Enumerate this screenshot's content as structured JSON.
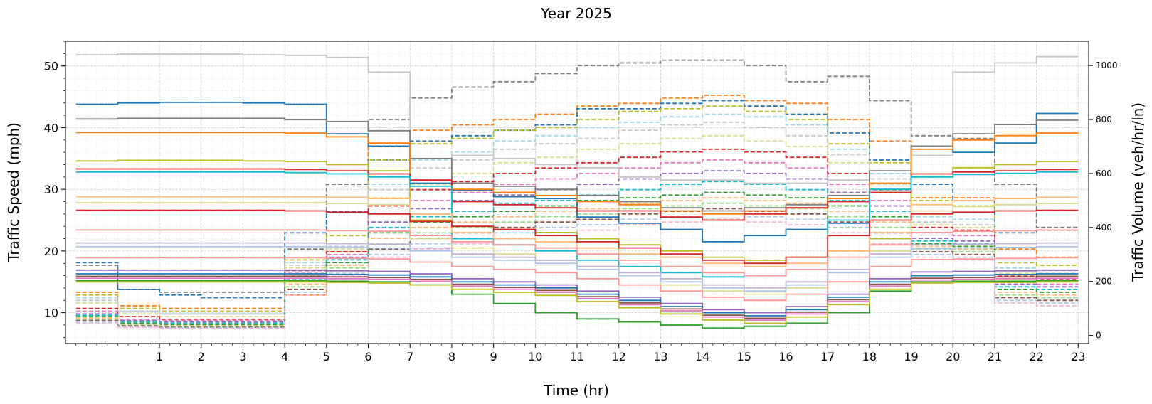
{
  "chart_data": {
    "type": "line",
    "title": "Year 2025",
    "xlabel": "Time (hr)",
    "ylabel": "Traffic Speed (mph)",
    "ylabel_right": "Traffic Volume (veh/hr/ln)",
    "xlim": [
      -1.25,
      23.25
    ],
    "ylim": [
      5,
      54
    ],
    "ylim_right": [
      -30,
      1090
    ],
    "x_ticks": [
      "1",
      "2",
      "3",
      "4",
      "5",
      "6",
      "7",
      "8",
      "9",
      "10",
      "11",
      "12",
      "13",
      "14",
      "15",
      "16",
      "17",
      "18",
      "19",
      "20",
      "21",
      "22",
      "23"
    ],
    "y_ticks": [
      "10",
      "20",
      "30",
      "40",
      "50"
    ],
    "y_ticks_right": [
      "0",
      "200",
      "400",
      "600",
      "800",
      "1000"
    ],
    "grid": true,
    "minor_grid": true,
    "legend": "none",
    "speed_series": [
      {
        "color": "#c7c7c7",
        "values": [
          51.8,
          51.9,
          51.9,
          51.9,
          51.8,
          51.7,
          51.4,
          49.0,
          26.0,
          35.5,
          35.0,
          34.0,
          33.5,
          32.0,
          31.5,
          31.5,
          31.0,
          31.0,
          31.5,
          31.0,
          35.5,
          49.0,
          50.5,
          51.5
        ]
      },
      {
        "color": "#1f77b4",
        "values": [
          43.8,
          44.0,
          44.1,
          44.1,
          44.0,
          43.8,
          39.0,
          37.0,
          31.0,
          29.8,
          28.8,
          28.5,
          25.5,
          24.5,
          23.5,
          21.5,
          22.5,
          23.5,
          24.5,
          30.0,
          37.0,
          36.0,
          37.5,
          42.3
        ]
      },
      {
        "color": "#7f7f7f",
        "values": [
          41.4,
          41.5,
          41.5,
          41.5,
          41.5,
          41.3,
          41.0,
          39.5,
          35.0,
          31.0,
          30.5,
          30.0,
          29.0,
          28.0,
          27.0,
          26.5,
          27.0,
          27.5,
          29.0,
          33.0,
          37.0,
          39.0,
          40.5,
          41.2
        ]
      },
      {
        "color": "#ff7f0e",
        "values": [
          39.2,
          39.2,
          39.2,
          39.2,
          39.2,
          39.1,
          38.5,
          37.5,
          31.5,
          30.0,
          29.5,
          29.0,
          28.0,
          27.5,
          26.5,
          26.0,
          26.5,
          27.0,
          28.5,
          31.0,
          36.5,
          38.0,
          38.7,
          39.1
        ]
      },
      {
        "color": "#bcbd22",
        "values": [
          34.6,
          34.7,
          34.7,
          34.7,
          34.6,
          34.5,
          34.0,
          33.0,
          25.0,
          24.0,
          23.5,
          23.0,
          22.0,
          21.0,
          20.0,
          19.0,
          18.5,
          19.0,
          20.0,
          22.0,
          32.0,
          33.5,
          34.0,
          34.5
        ]
      },
      {
        "color": "#d62728",
        "values": [
          33.3,
          33.3,
          33.3,
          33.3,
          33.3,
          33.2,
          33.0,
          32.5,
          31.5,
          28.0,
          27.5,
          27.0,
          26.5,
          26.5,
          25.5,
          25.0,
          26.0,
          27.0,
          28.0,
          29.5,
          32.5,
          32.8,
          33.0,
          33.2
        ]
      },
      {
        "color": "#17becf",
        "values": [
          32.8,
          32.8,
          32.8,
          32.8,
          32.8,
          32.7,
          32.5,
          32.0,
          30.5,
          22.0,
          21.0,
          20.0,
          18.5,
          17.5,
          16.5,
          15.8,
          16.0,
          17.0,
          25.0,
          30.0,
          32.0,
          32.4,
          32.6,
          32.8
        ]
      },
      {
        "color": "#ffbb78",
        "values": [
          28.8,
          28.8,
          28.8,
          28.8,
          28.8,
          28.8,
          28.7,
          28.5,
          26.0,
          23.0,
          22.0,
          21.5,
          20.5,
          19.5,
          19.0,
          18.0,
          17.5,
          18.0,
          20.0,
          23.0,
          27.5,
          28.2,
          28.5,
          28.7
        ]
      },
      {
        "color": "#dbdb8d",
        "values": [
          27.8,
          27.8,
          27.8,
          27.8,
          27.8,
          27.8,
          27.7,
          27.5,
          22.0,
          20.5,
          19.5,
          18.5,
          17.5,
          16.0,
          14.5,
          13.5,
          13.0,
          14.0,
          16.5,
          20.0,
          26.5,
          27.2,
          27.5,
          27.7
        ]
      },
      {
        "color": "#d62728",
        "values": [
          26.6,
          26.6,
          26.6,
          26.6,
          26.6,
          26.5,
          26.3,
          26.0,
          24.8,
          24.0,
          23.5,
          22.5,
          21.5,
          20.5,
          19.5,
          18.5,
          18.0,
          19.0,
          22.5,
          25.0,
          26.0,
          26.3,
          26.5,
          26.6
        ]
      },
      {
        "color": "#ff9896",
        "values": [
          23.4,
          23.4,
          23.4,
          23.4,
          23.4,
          23.4,
          23.3,
          23.2,
          22.5,
          21.5,
          21.0,
          20.5,
          19.5,
          18.5,
          17.5,
          16.5,
          16.0,
          17.0,
          19.0,
          21.0,
          23.0,
          23.2,
          23.3,
          23.4
        ]
      },
      {
        "color": "#c5b0d5",
        "values": [
          21.3,
          21.3,
          21.3,
          21.3,
          21.3,
          21.3,
          21.2,
          21.1,
          20.5,
          19.5,
          19.0,
          18.5,
          17.5,
          16.5,
          15.5,
          14.5,
          14.0,
          15.0,
          17.0,
          19.5,
          21.0,
          21.1,
          21.2,
          21.3
        ]
      },
      {
        "color": "#aec7e8",
        "values": [
          20.7,
          20.7,
          20.7,
          20.7,
          20.7,
          20.7,
          20.6,
          20.5,
          20.0,
          19.0,
          18.5,
          18.0,
          17.0,
          16.0,
          15.0,
          14.0,
          13.5,
          14.5,
          16.5,
          19.0,
          20.4,
          20.5,
          20.6,
          20.7
        ]
      },
      {
        "color": "#ff9896",
        "values": [
          18.9,
          18.9,
          18.9,
          18.9,
          18.9,
          18.9,
          18.8,
          18.7,
          18.2,
          17.5,
          17.0,
          16.5,
          15.5,
          14.5,
          13.5,
          12.5,
          12.0,
          13.0,
          15.0,
          17.5,
          18.6,
          18.7,
          18.8,
          18.9
        ]
      },
      {
        "color": "#9467bd",
        "values": [
          16.9,
          16.9,
          16.9,
          16.9,
          16.9,
          16.9,
          16.8,
          16.7,
          16.3,
          15.5,
          15.0,
          14.5,
          13.5,
          12.5,
          11.5,
          10.5,
          10.0,
          11.0,
          13.0,
          15.5,
          16.6,
          16.7,
          16.8,
          16.9
        ]
      },
      {
        "color": "#1f77b4",
        "values": [
          16.3,
          16.3,
          16.3,
          16.3,
          16.3,
          16.3,
          16.2,
          16.1,
          15.8,
          15.0,
          14.5,
          14.0,
          13.0,
          12.0,
          11.0,
          10.0,
          9.5,
          10.5,
          12.5,
          15.0,
          16.0,
          16.1,
          16.2,
          16.3
        ]
      },
      {
        "color": "#8c564b",
        "values": [
          15.9,
          15.9,
          15.9,
          15.9,
          15.9,
          15.9,
          15.8,
          15.7,
          15.4,
          14.6,
          14.1,
          13.6,
          12.6,
          11.6,
          10.6,
          9.6,
          9.1,
          10.1,
          12.1,
          14.6,
          15.6,
          15.7,
          15.8,
          15.9
        ]
      },
      {
        "color": "#e377c2",
        "values": [
          15.6,
          15.6,
          15.6,
          15.6,
          15.6,
          15.6,
          15.5,
          15.4,
          15.1,
          14.3,
          13.8,
          13.3,
          12.3,
          11.3,
          10.3,
          9.3,
          8.8,
          9.8,
          11.8,
          14.3,
          15.3,
          15.4,
          15.5,
          15.6
        ]
      },
      {
        "color": "#2ca02c",
        "values": [
          15.2,
          15.2,
          15.2,
          15.2,
          15.2,
          15.2,
          15.1,
          15.0,
          14.5,
          13.0,
          11.5,
          10.0,
          9.0,
          8.5,
          8.0,
          7.5,
          7.8,
          8.3,
          10.0,
          13.5,
          15.0,
          15.1,
          15.1,
          15.2
        ]
      },
      {
        "color": "#bcbd22",
        "values": [
          15.0,
          15.0,
          15.0,
          15.0,
          15.0,
          15.0,
          14.9,
          14.8,
          14.5,
          13.8,
          13.3,
          12.8,
          11.8,
          10.8,
          9.8,
          8.8,
          8.3,
          9.3,
          11.3,
          13.8,
          14.8,
          14.9,
          14.9,
          15.0
        ]
      }
    ],
    "volume_series": [
      {
        "color": "#7f7f7f",
        "values": [
          260,
          170,
          160,
          160,
          160,
          320,
          560,
          800,
          880,
          920,
          940,
          970,
          1000,
          1010,
          1020,
          1020,
          1000,
          940,
          960,
          870,
          740,
          730,
          560,
          400
        ]
      },
      {
        "color": "#ff7f0e",
        "values": [
          160,
          110,
          100,
          100,
          100,
          150,
          310,
          700,
          760,
          780,
          800,
          820,
          850,
          860,
          880,
          890,
          870,
          860,
          800,
          720,
          510,
          510,
          320,
          290
        ]
      },
      {
        "color": "#1f77b4",
        "values": [
          270,
          170,
          150,
          140,
          140,
          380,
          460,
          650,
          720,
          740,
          760,
          780,
          840,
          840,
          860,
          870,
          850,
          820,
          750,
          650,
          560,
          500,
          380,
          390
        ]
      },
      {
        "color": "#bcbd22",
        "values": [
          150,
          100,
          90,
          90,
          90,
          280,
          370,
          650,
          710,
          730,
          760,
          770,
          800,
          830,
          840,
          850,
          830,
          800,
          710,
          640,
          500,
          480,
          270,
          260
        ]
      },
      {
        "color": "#9edae5",
        "values": [
          140,
          90,
          80,
          80,
          80,
          270,
          340,
          560,
          650,
          680,
          720,
          740,
          770,
          790,
          810,
          820,
          810,
          780,
          690,
          600,
          440,
          430,
          250,
          240
        ]
      },
      {
        "color": "#c7c7c7",
        "values": [
          130,
          90,
          80,
          80,
          80,
          260,
          330,
          540,
          620,
          650,
          690,
          710,
          730,
          760,
          780,
          790,
          770,
          740,
          670,
          580,
          420,
          410,
          240,
          230
        ]
      },
      {
        "color": "#dbdb8d",
        "values": [
          120,
          80,
          70,
          70,
          70,
          250,
          320,
          510,
          560,
          600,
          640,
          660,
          690,
          710,
          730,
          740,
          720,
          700,
          640,
          560,
          410,
          400,
          230,
          220
        ]
      },
      {
        "color": "#d62728",
        "values": [
          100,
          70,
          60,
          60,
          60,
          240,
          310,
          480,
          540,
          570,
          600,
          620,
          640,
          660,
          680,
          690,
          680,
          660,
          600,
          540,
          400,
          390,
          220,
          210
        ]
      },
      {
        "color": "#e377c2",
        "values": [
          90,
          60,
          55,
          55,
          55,
          230,
          300,
          450,
          500,
          530,
          560,
          580,
          600,
          620,
          640,
          650,
          640,
          620,
          560,
          500,
          380,
          370,
          200,
          190
        ]
      },
      {
        "color": "#9467bd",
        "values": [
          80,
          55,
          50,
          50,
          50,
          220,
          290,
          420,
          470,
          500,
          520,
          540,
          560,
          580,
          600,
          610,
          600,
          580,
          530,
          480,
          360,
          350,
          190,
          180
        ]
      },
      {
        "color": "#17becf",
        "values": [
          75,
          50,
          45,
          45,
          45,
          210,
          280,
          400,
          440,
          460,
          490,
          500,
          520,
          540,
          560,
          570,
          560,
          540,
          500,
          460,
          350,
          340,
          180,
          170
        ]
      },
      {
        "color": "#2ca02c",
        "values": [
          70,
          45,
          40,
          40,
          40,
          200,
          270,
          380,
          420,
          440,
          460,
          480,
          500,
          510,
          520,
          530,
          520,
          510,
          480,
          440,
          340,
          330,
          170,
          160
        ]
      },
      {
        "color": "#ffbb78",
        "values": [
          65,
          40,
          35,
          35,
          35,
          190,
          260,
          360,
          400,
          420,
          440,
          460,
          470,
          490,
          500,
          510,
          500,
          490,
          460,
          420,
          330,
          320,
          160,
          150
        ]
      },
      {
        "color": "#98df8a",
        "values": [
          60,
          38,
          32,
          32,
          32,
          180,
          250,
          340,
          380,
          400,
          420,
          440,
          450,
          470,
          480,
          490,
          480,
          470,
          440,
          400,
          320,
          310,
          150,
          140
        ]
      },
      {
        "color": "#8c564b",
        "values": [
          55,
          35,
          30,
          30,
          30,
          170,
          240,
          320,
          360,
          380,
          400,
          420,
          430,
          450,
          460,
          470,
          460,
          450,
          420,
          380,
          310,
          300,
          140,
          130
        ]
      },
      {
        "color": "#aec7e8",
        "values": [
          50,
          32,
          28,
          28,
          28,
          160,
          230,
          300,
          340,
          360,
          380,
          400,
          410,
          430,
          440,
          450,
          440,
          430,
          400,
          360,
          300,
          290,
          130,
          120
        ]
      },
      {
        "color": "#f7b6d2",
        "values": [
          45,
          30,
          25,
          25,
          25,
          150,
          220,
          290,
          320,
          340,
          360,
          380,
          390,
          410,
          420,
          430,
          420,
          410,
          380,
          340,
          290,
          280,
          120,
          110
        ]
      }
    ],
    "x": [
      -1,
      0,
      1,
      2,
      3,
      4,
      5,
      6,
      7,
      8,
      9,
      10,
      11,
      12,
      13,
      14,
      15,
      16,
      17,
      18,
      19,
      20,
      21,
      22
    ]
  }
}
